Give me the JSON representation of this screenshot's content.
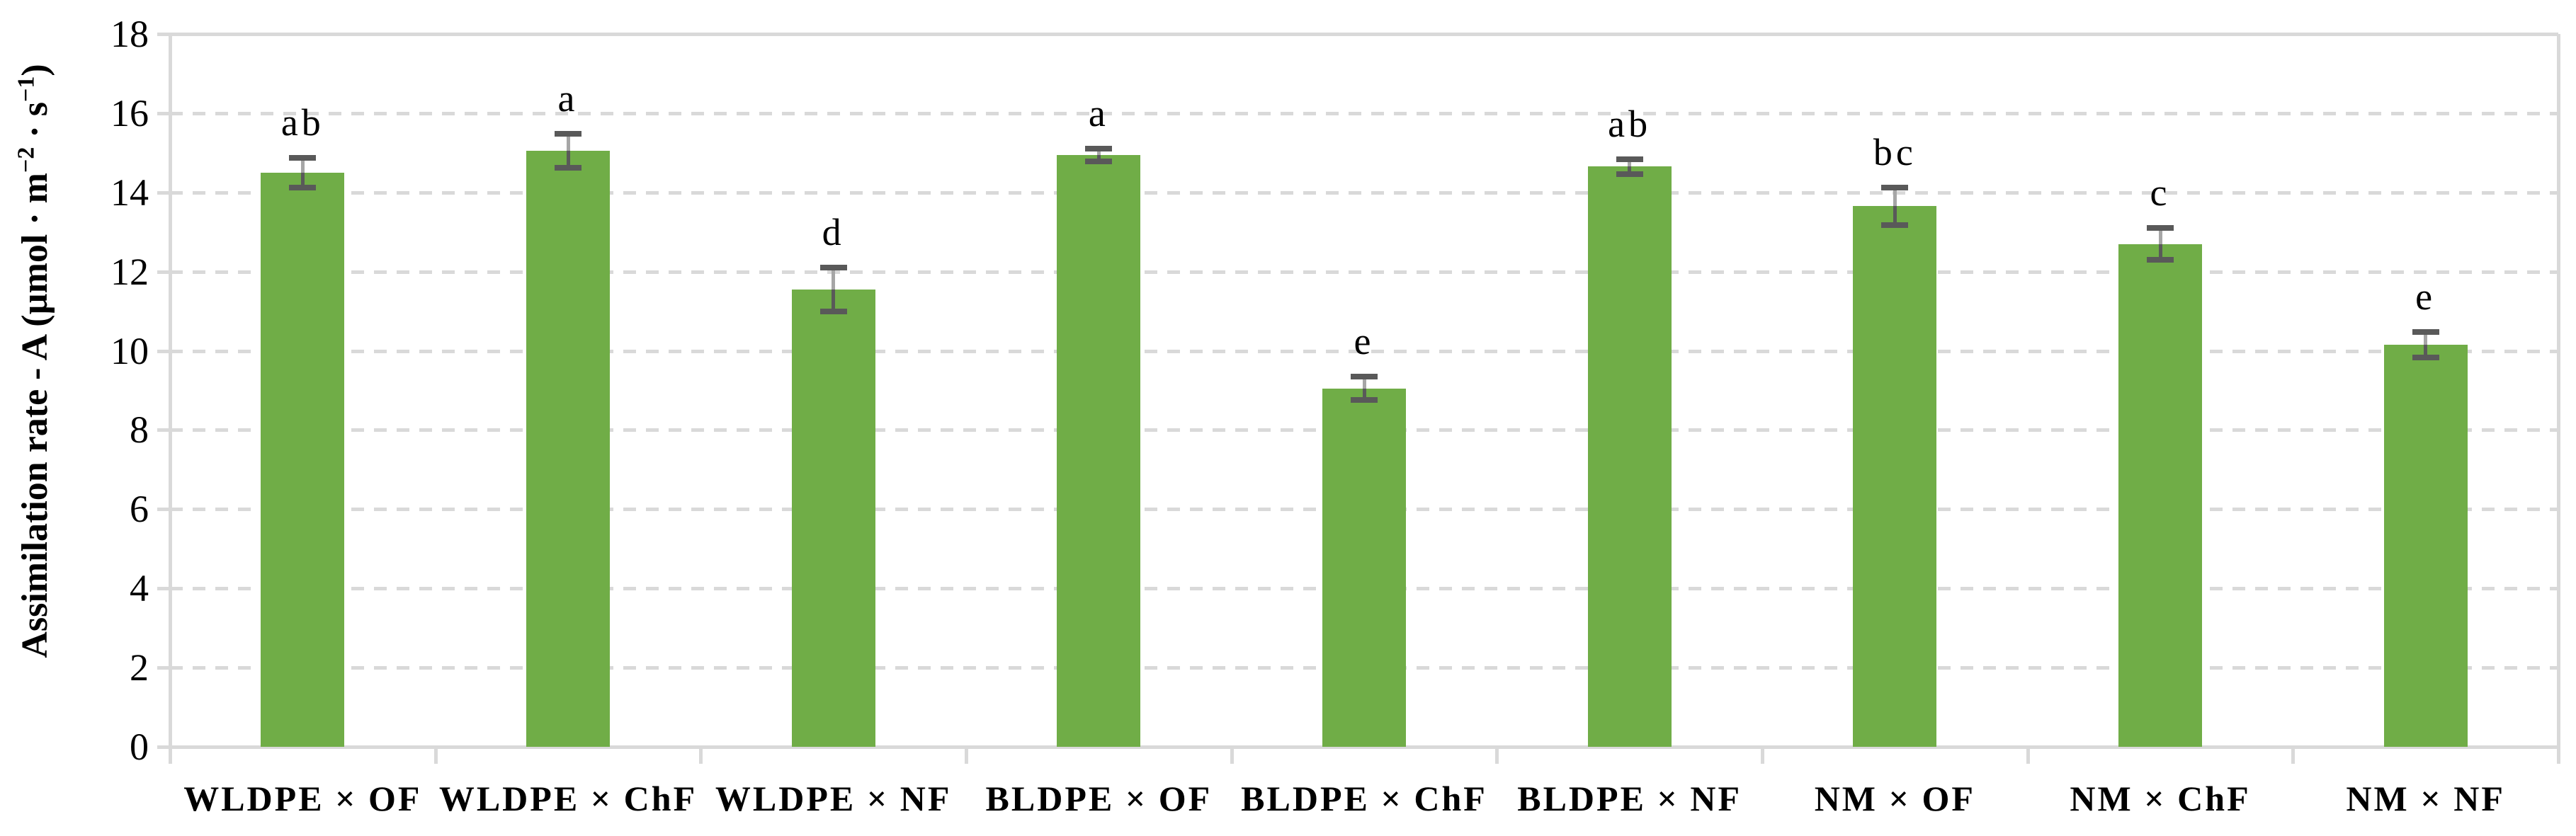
{
  "chart_data": {
    "type": "bar",
    "title": "",
    "xlabel": "",
    "ylabel": "Assimilation rate - A (µmol · m⁻² · s⁻¹)",
    "ylabel_parts": {
      "pre": "Assimilation rate - A (µmol · m",
      "sup1": "−2",
      "mid": " · s",
      "sup2": "−1",
      "post": ")"
    },
    "categories": [
      "WLDPE × OF",
      "WLDPE × ChF",
      "WLDPE × NF",
      "BLDPE × OF",
      "BLDPE × ChF",
      "BLDPE × NF",
      "NM × OF",
      "NM × ChF",
      "NM × NF"
    ],
    "values": [
      14.5,
      15.05,
      11.55,
      14.95,
      9.05,
      14.65,
      13.65,
      12.7,
      10.15
    ],
    "errors": [
      0.37,
      0.43,
      0.55,
      0.16,
      0.29,
      0.19,
      0.47,
      0.4,
      0.32
    ],
    "significance_letters": [
      "ab",
      "a",
      "d",
      "a",
      "e",
      "ab",
      "bc",
      "c",
      "e"
    ],
    "yticks": [
      0,
      2,
      4,
      6,
      8,
      10,
      12,
      14,
      16,
      18
    ],
    "ylim": [
      0,
      18
    ],
    "grid": "horizontal-dashed",
    "legend": "none",
    "colors": {
      "bar": "#70AD47",
      "error_bar": "#595959",
      "error_line_upper": "#A6A6A6",
      "gridline": "#D9D9D9",
      "axis": "#D9D9D9",
      "text": "#000000",
      "background": "#FFFFFF"
    }
  }
}
